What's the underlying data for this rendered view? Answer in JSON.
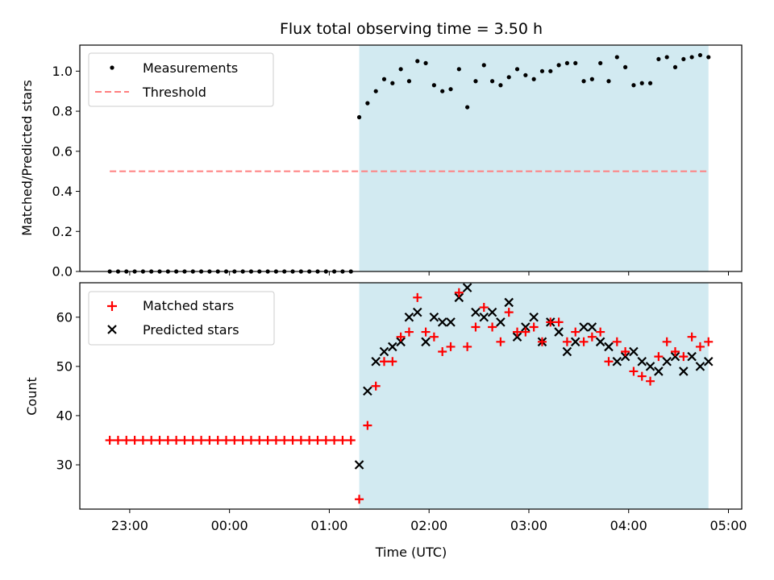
{
  "title": "Flux total observing time = 3.50 h",
  "xlabel": "Time (UTC)",
  "colors": {
    "observing_span": "#add8e6",
    "measurements": "#000000",
    "threshold": "#ff7f7f",
    "matched": "#ff0000",
    "predicted": "#000000"
  },
  "chart_data": [
    {
      "type": "scatter",
      "ylabel": "Matched/Predicted stars",
      "xlim": [
        "22:30",
        "05:08"
      ],
      "ylim": [
        0,
        1.13
      ],
      "yticks": [
        "0.0",
        "0.2",
        "0.4",
        "0.6",
        "0.8",
        "1.0"
      ],
      "shaded_span": [
        "01:18",
        "04:48"
      ],
      "legend_position": "upper-left",
      "threshold": {
        "name": "Threshold",
        "value": 0.5,
        "x_range": [
          "22:48",
          "04:48"
        ]
      },
      "series": [
        {
          "name": "Measurements",
          "marker": "dot",
          "points": [
            [
              "22:48",
              0
            ],
            [
              "22:53",
              0
            ],
            [
              "22:58",
              0
            ],
            [
              "23:03",
              0
            ],
            [
              "23:08",
              0
            ],
            [
              "23:13",
              0
            ],
            [
              "23:18",
              0
            ],
            [
              "23:23",
              0
            ],
            [
              "23:28",
              0
            ],
            [
              "23:33",
              0
            ],
            [
              "23:38",
              0
            ],
            [
              "23:43",
              0
            ],
            [
              "23:48",
              0
            ],
            [
              "23:53",
              0
            ],
            [
              "23:58",
              0
            ],
            [
              "00:03",
              0
            ],
            [
              "00:08",
              0
            ],
            [
              "00:13",
              0
            ],
            [
              "00:18",
              0
            ],
            [
              "00:23",
              0
            ],
            [
              "00:28",
              0
            ],
            [
              "00:33",
              0
            ],
            [
              "00:38",
              0
            ],
            [
              "00:43",
              0
            ],
            [
              "00:48",
              0
            ],
            [
              "00:53",
              0
            ],
            [
              "00:58",
              0
            ],
            [
              "01:03",
              0
            ],
            [
              "01:08",
              0
            ],
            [
              "01:13",
              0
            ],
            [
              "01:18",
              0.77
            ],
            [
              "01:23",
              0.84
            ],
            [
              "01:28",
              0.9
            ],
            [
              "01:33",
              0.96
            ],
            [
              "01:38",
              0.94
            ],
            [
              "01:43",
              1.01
            ],
            [
              "01:48",
              0.95
            ],
            [
              "01:53",
              1.05
            ],
            [
              "01:58",
              1.04
            ],
            [
              "02:03",
              0.93
            ],
            [
              "02:08",
              0.9
            ],
            [
              "02:13",
              0.91
            ],
            [
              "02:18",
              1.01
            ],
            [
              "02:23",
              0.82
            ],
            [
              "02:28",
              0.95
            ],
            [
              "02:33",
              1.03
            ],
            [
              "02:38",
              0.95
            ],
            [
              "02:43",
              0.93
            ],
            [
              "02:48",
              0.97
            ],
            [
              "02:53",
              1.01
            ],
            [
              "02:58",
              0.98
            ],
            [
              "03:03",
              0.96
            ],
            [
              "03:08",
              1.0
            ],
            [
              "03:13",
              1.0
            ],
            [
              "03:18",
              1.03
            ],
            [
              "03:23",
              1.04
            ],
            [
              "03:28",
              1.04
            ],
            [
              "03:33",
              0.95
            ],
            [
              "03:38",
              0.96
            ],
            [
              "03:43",
              1.04
            ],
            [
              "03:48",
              0.95
            ],
            [
              "03:53",
              1.07
            ],
            [
              "03:58",
              1.02
            ],
            [
              "04:03",
              0.93
            ],
            [
              "04:08",
              0.94
            ],
            [
              "04:13",
              0.94
            ],
            [
              "04:18",
              1.06
            ],
            [
              "04:23",
              1.07
            ],
            [
              "04:28",
              1.02
            ],
            [
              "04:33",
              1.06
            ],
            [
              "04:38",
              1.07
            ],
            [
              "04:43",
              1.08
            ],
            [
              "04:48",
              1.07
            ]
          ]
        }
      ]
    },
    {
      "type": "scatter",
      "ylabel": "Count",
      "xlim": [
        "22:30",
        "05:08"
      ],
      "ylim": [
        21,
        67
      ],
      "yticks": [
        "30",
        "40",
        "50",
        "60"
      ],
      "xticks": [
        "23:00",
        "00:00",
        "01:00",
        "02:00",
        "03:00",
        "04:00",
        "05:00"
      ],
      "shaded_span": [
        "01:18",
        "04:48"
      ],
      "legend_position": "upper-left",
      "series": [
        {
          "name": "Matched stars",
          "marker": "plus",
          "points": [
            [
              "22:48",
              35
            ],
            [
              "22:53",
              35
            ],
            [
              "22:58",
              35
            ],
            [
              "23:03",
              35
            ],
            [
              "23:08",
              35
            ],
            [
              "23:13",
              35
            ],
            [
              "23:18",
              35
            ],
            [
              "23:23",
              35
            ],
            [
              "23:28",
              35
            ],
            [
              "23:33",
              35
            ],
            [
              "23:38",
              35
            ],
            [
              "23:43",
              35
            ],
            [
              "23:48",
              35
            ],
            [
              "23:53",
              35
            ],
            [
              "23:58",
              35
            ],
            [
              "00:03",
              35
            ],
            [
              "00:08",
              35
            ],
            [
              "00:13",
              35
            ],
            [
              "00:18",
              35
            ],
            [
              "00:23",
              35
            ],
            [
              "00:28",
              35
            ],
            [
              "00:33",
              35
            ],
            [
              "00:38",
              35
            ],
            [
              "00:43",
              35
            ],
            [
              "00:48",
              35
            ],
            [
              "00:53",
              35
            ],
            [
              "00:58",
              35
            ],
            [
              "01:03",
              35
            ],
            [
              "01:08",
              35
            ],
            [
              "01:13",
              35
            ],
            [
              "01:18",
              23
            ],
            [
              "01:23",
              38
            ],
            [
              "01:28",
              46
            ],
            [
              "01:33",
              51
            ],
            [
              "01:38",
              51
            ],
            [
              "01:43",
              56
            ],
            [
              "01:48",
              57
            ],
            [
              "01:53",
              64
            ],
            [
              "01:58",
              57
            ],
            [
              "02:03",
              56
            ],
            [
              "02:08",
              53
            ],
            [
              "02:13",
              54
            ],
            [
              "02:18",
              65
            ],
            [
              "02:23",
              54
            ],
            [
              "02:28",
              58
            ],
            [
              "02:33",
              62
            ],
            [
              "02:38",
              58
            ],
            [
              "02:43",
              55
            ],
            [
              "02:48",
              61
            ],
            [
              "02:53",
              57
            ],
            [
              "02:58",
              57
            ],
            [
              "03:03",
              58
            ],
            [
              "03:08",
              55
            ],
            [
              "03:13",
              59
            ],
            [
              "03:18",
              59
            ],
            [
              "03:23",
              55
            ],
            [
              "03:28",
              57
            ],
            [
              "03:33",
              55
            ],
            [
              "03:38",
              56
            ],
            [
              "03:43",
              57
            ],
            [
              "03:48",
              51
            ],
            [
              "03:53",
              55
            ],
            [
              "03:58",
              53
            ],
            [
              "04:03",
              49
            ],
            [
              "04:08",
              48
            ],
            [
              "04:13",
              47
            ],
            [
              "04:18",
              52
            ],
            [
              "04:23",
              55
            ],
            [
              "04:28",
              53
            ],
            [
              "04:33",
              52
            ],
            [
              "04:38",
              56
            ],
            [
              "04:43",
              54
            ],
            [
              "04:48",
              55
            ]
          ]
        },
        {
          "name": "Predicted stars",
          "marker": "x",
          "points": [
            [
              "01:18",
              30
            ],
            [
              "01:23",
              45
            ],
            [
              "01:28",
              51
            ],
            [
              "01:33",
              53
            ],
            [
              "01:38",
              54
            ],
            [
              "01:43",
              55
            ],
            [
              "01:48",
              60
            ],
            [
              "01:53",
              61
            ],
            [
              "01:58",
              55
            ],
            [
              "02:03",
              60
            ],
            [
              "02:08",
              59
            ],
            [
              "02:13",
              59
            ],
            [
              "02:18",
              64
            ],
            [
              "02:23",
              66
            ],
            [
              "02:28",
              61
            ],
            [
              "02:33",
              60
            ],
            [
              "02:38",
              61
            ],
            [
              "02:43",
              59
            ],
            [
              "02:48",
              63
            ],
            [
              "02:53",
              56
            ],
            [
              "02:58",
              58
            ],
            [
              "03:03",
              60
            ],
            [
              "03:08",
              55
            ],
            [
              "03:13",
              59
            ],
            [
              "03:18",
              57
            ],
            [
              "03:23",
              53
            ],
            [
              "03:28",
              55
            ],
            [
              "03:33",
              58
            ],
            [
              "03:38",
              58
            ],
            [
              "03:43",
              55
            ],
            [
              "03:48",
              54
            ],
            [
              "03:53",
              51
            ],
            [
              "03:58",
              52
            ],
            [
              "04:03",
              53
            ],
            [
              "04:08",
              51
            ],
            [
              "04:13",
              50
            ],
            [
              "04:18",
              49
            ],
            [
              "04:23",
              51
            ],
            [
              "04:28",
              52
            ],
            [
              "04:33",
              49
            ],
            [
              "04:38",
              52
            ],
            [
              "04:43",
              50
            ],
            [
              "04:48",
              51
            ]
          ]
        }
      ]
    }
  ]
}
